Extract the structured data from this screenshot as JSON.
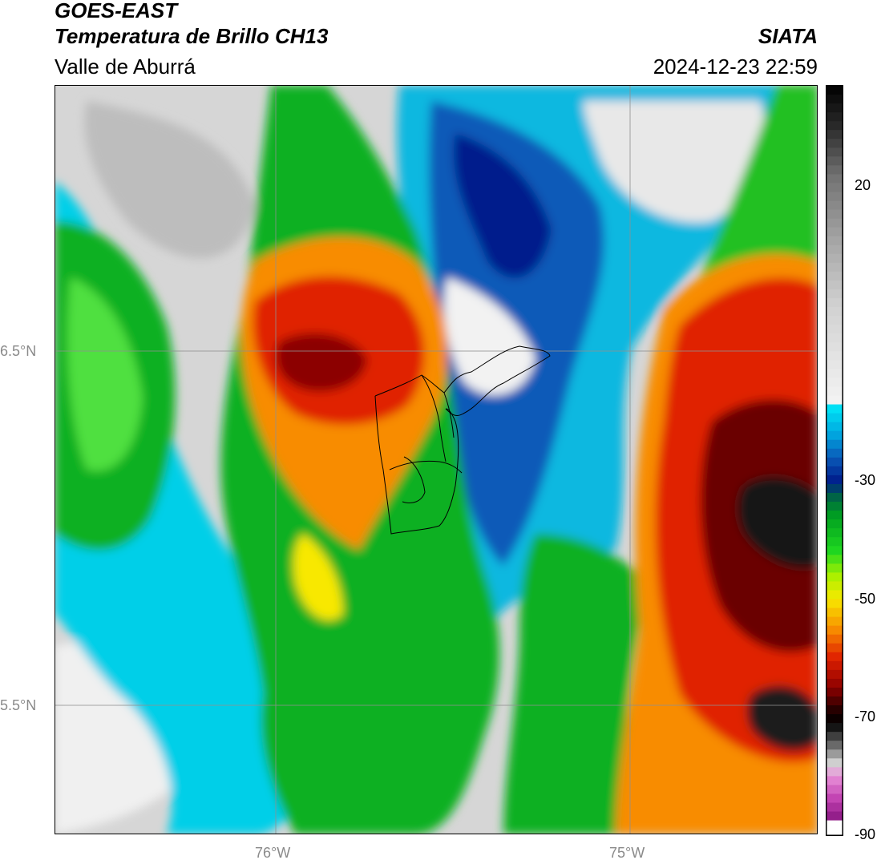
{
  "header": {
    "satellite": "GOES-EAST",
    "product": "Temperatura de Brillo CH13",
    "region": "Valle de Aburrá",
    "agency": "SIATA",
    "datetime": "2024-12-23 22:59"
  },
  "axes": {
    "lat_ticks": [
      {
        "label": "6.5°N",
        "value": 6.5
      },
      {
        "label": "5.5°N",
        "value": 5.5
      }
    ],
    "lon_ticks": [
      {
        "label": "76°W",
        "value": -76
      },
      {
        "label": "75°W",
        "value": -75
      }
    ],
    "grid": true
  },
  "colorbar": {
    "min": -90,
    "max": 37,
    "tick_labels": [
      {
        "label": "20",
        "value": 20
      },
      {
        "label": "-30",
        "value": -30
      },
      {
        "label": "-50",
        "value": -50
      },
      {
        "label": "-70",
        "value": -70
      },
      {
        "label": "-90",
        "value": -90
      }
    ]
  },
  "colors": {
    "warm_gray": "#d8d8d8",
    "cyan": "#00d8ee",
    "blue": "#0a5ab8",
    "navy": "#001e8c",
    "green": "#10c020",
    "bright_green": "#40f040",
    "yellow": "#f8ec00",
    "orange": "#f88400",
    "red": "#e01c00",
    "dark_red": "#6a0000",
    "black": "#101010",
    "magenta": "#e070c8"
  }
}
